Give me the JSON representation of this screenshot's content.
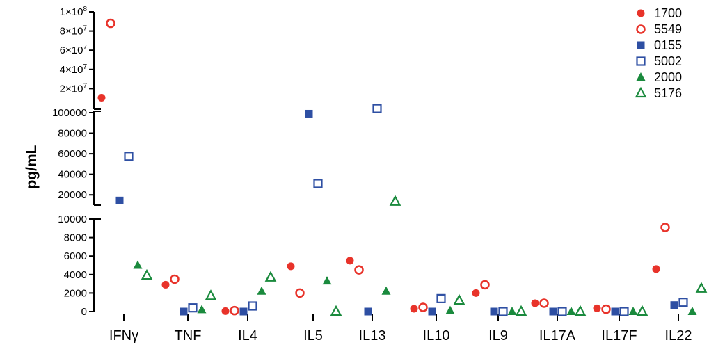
{
  "chart_data": {
    "type": "scatter",
    "ylabel": "pg/mL",
    "y_axis": "segmented (broken axis)",
    "y_segments": [
      {
        "range": [
          0,
          10000
        ],
        "ticks": [
          0,
          2000,
          4000,
          6000,
          8000,
          10000
        ]
      },
      {
        "range": [
          10000,
          100000
        ],
        "ticks": [
          20000,
          40000,
          60000,
          80000,
          100000
        ]
      },
      {
        "range": [
          0,
          100000000
        ],
        "ticks": [
          20000000,
          40000000,
          60000000,
          80000000,
          100000000
        ]
      }
    ],
    "tick_labels": {
      "seg0": [
        "0",
        "2000",
        "4000",
        "6000",
        "8000",
        "10000"
      ],
      "seg1": [
        "20000",
        "40000",
        "60000",
        "80000",
        "100000"
      ],
      "seg2": [
        "2×10",
        "4×10",
        "6×10",
        "8×10",
        "1×10"
      ],
      "seg2_exponent": "7",
      "seg2_top_exponent": "8"
    },
    "categories": [
      "IFNγ",
      "TNF",
      "IL4",
      "IL5",
      "IL13",
      "IL10",
      "IL9",
      "IL17A",
      "IL17F",
      "IL22"
    ],
    "legend_placement": "top-right",
    "series": [
      {
        "name": "1700",
        "color": "#e8332a",
        "marker": "circle",
        "filled": true,
        "values": [
          10500000,
          2900,
          50,
          4900,
          5500,
          300,
          2000,
          900,
          350,
          4600
        ]
      },
      {
        "name": "5549",
        "color": "#e8332a",
        "marker": "circle",
        "filled": false,
        "values": [
          88000000,
          3500,
          100,
          2000,
          4500,
          450,
          2900,
          900,
          250,
          9100
        ]
      },
      {
        "name": "0155",
        "color": "#2e4fa3",
        "marker": "square",
        "filled": true,
        "values": [
          14500,
          0,
          0,
          99000,
          0,
          0,
          0,
          0,
          0,
          700
        ]
      },
      {
        "name": "5002",
        "color": "#2e4fa3",
        "marker": "square",
        "filled": false,
        "values": [
          57500,
          400,
          600,
          31000,
          104000,
          1400,
          0,
          0,
          0,
          1000
        ]
      },
      {
        "name": "2000",
        "color": "#1a8a3d",
        "marker": "triangle",
        "filled": true,
        "values": [
          5000,
          200,
          2200,
          3300,
          2200,
          100,
          0,
          0,
          0,
          0
        ]
      },
      {
        "name": "5176",
        "color": "#1a8a3d",
        "marker": "triangle",
        "filled": false,
        "values": [
          3900,
          1700,
          3700,
          0,
          13500,
          1200,
          0,
          0,
          0,
          2500
        ]
      }
    ]
  }
}
